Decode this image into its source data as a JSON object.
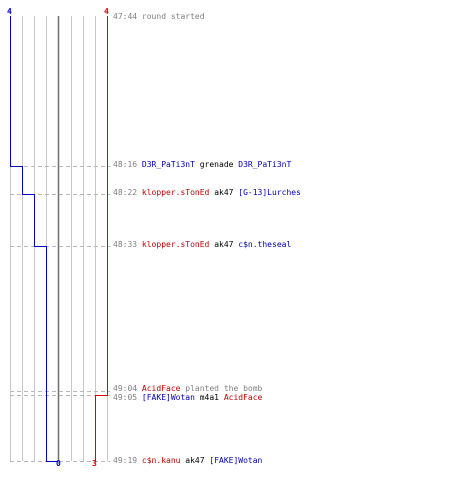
{
  "colors": {
    "team_blue": "#0000cc",
    "team_red": "#dd0000",
    "grid": "#c8c8c8",
    "center_line": "#707070",
    "dash": "#b8b8b8",
    "time_text": "#808080",
    "action_text": "#808080"
  },
  "header": {
    "blue_start": "4",
    "red_start": "4"
  },
  "footer": {
    "blue_end": "0",
    "red_end": "3"
  },
  "chart_data": {
    "type": "line",
    "series": [
      {
        "team": "blue",
        "points": [
          [
            "47:44",
            4
          ],
          [
            "48:16",
            3
          ],
          [
            "48:22",
            2
          ],
          [
            "48:33",
            1
          ],
          [
            "49:19",
            0
          ]
        ]
      },
      {
        "team": "red",
        "points": [
          [
            "47:44",
            4
          ],
          [
            "49:05",
            3
          ]
        ]
      }
    ],
    "events": [
      {
        "time": "47:44",
        "action": "round started"
      },
      {
        "time": "48:16",
        "killer": "D3R_PaTi3nT",
        "killer_team": "blue",
        "weapon": "grenade",
        "victim": "D3R_PaTi3nT",
        "victim_team": "blue"
      },
      {
        "time": "48:22",
        "killer": "klopper.sTonEd",
        "killer_team": "red",
        "weapon": "ak47",
        "victim": "[G-13]Lurches",
        "victim_team": "blue"
      },
      {
        "time": "48:33",
        "killer": "klopper.sTonEd",
        "killer_team": "red",
        "weapon": "ak47",
        "victim": "c$n.theseal",
        "victim_team": "blue"
      },
      {
        "time": "49:04",
        "killer": "AcidFace",
        "killer_team": "red",
        "weapon": "planted the bomb"
      },
      {
        "time": "49:05",
        "killer": "[FAKE]Wotan",
        "killer_team": "blue",
        "weapon": "m4a1",
        "victim": "AcidFace",
        "victim_team": "red"
      },
      {
        "time": "49:19",
        "killer": "c$n.kanu",
        "killer_team": "red",
        "weapon": "ak47",
        "victim": "[FAKE]Wotan",
        "victim_team": "blue"
      }
    ]
  }
}
